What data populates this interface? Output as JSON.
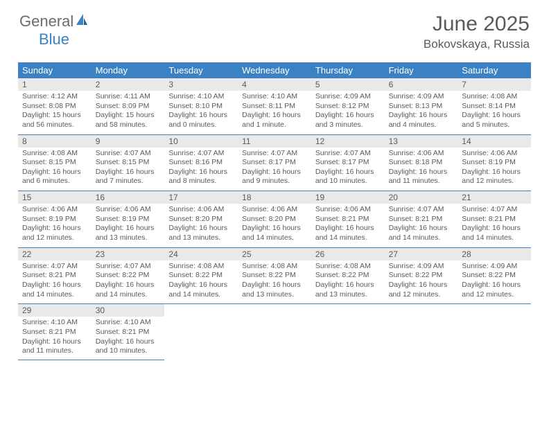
{
  "logo": {
    "text1": "General",
    "text2": "Blue"
  },
  "title": "June 2025",
  "location": "Bokovskaya, Russia",
  "colors": {
    "header_bg": "#3b82c4",
    "header_text": "#ffffff",
    "daynum_bg": "#e9e9e9",
    "text": "#5a5a5a",
    "rule": "#3b82c4",
    "page_bg": "#ffffff"
  },
  "typography": {
    "title_fontsize": 30,
    "location_fontsize": 17,
    "dayhead_fontsize": 13,
    "daynum_fontsize": 12,
    "body_fontsize": 10.5
  },
  "day_names": [
    "Sunday",
    "Monday",
    "Tuesday",
    "Wednesday",
    "Thursday",
    "Friday",
    "Saturday"
  ],
  "weeks": [
    [
      {
        "n": "1",
        "sunrise": "4:12 AM",
        "sunset": "8:08 PM",
        "daylight": "15 hours and 56 minutes."
      },
      {
        "n": "2",
        "sunrise": "4:11 AM",
        "sunset": "8:09 PM",
        "daylight": "15 hours and 58 minutes."
      },
      {
        "n": "3",
        "sunrise": "4:10 AM",
        "sunset": "8:10 PM",
        "daylight": "16 hours and 0 minutes."
      },
      {
        "n": "4",
        "sunrise": "4:10 AM",
        "sunset": "8:11 PM",
        "daylight": "16 hours and 1 minute."
      },
      {
        "n": "5",
        "sunrise": "4:09 AM",
        "sunset": "8:12 PM",
        "daylight": "16 hours and 3 minutes."
      },
      {
        "n": "6",
        "sunrise": "4:09 AM",
        "sunset": "8:13 PM",
        "daylight": "16 hours and 4 minutes."
      },
      {
        "n": "7",
        "sunrise": "4:08 AM",
        "sunset": "8:14 PM",
        "daylight": "16 hours and 5 minutes."
      }
    ],
    [
      {
        "n": "8",
        "sunrise": "4:08 AM",
        "sunset": "8:15 PM",
        "daylight": "16 hours and 6 minutes."
      },
      {
        "n": "9",
        "sunrise": "4:07 AM",
        "sunset": "8:15 PM",
        "daylight": "16 hours and 7 minutes."
      },
      {
        "n": "10",
        "sunrise": "4:07 AM",
        "sunset": "8:16 PM",
        "daylight": "16 hours and 8 minutes."
      },
      {
        "n": "11",
        "sunrise": "4:07 AM",
        "sunset": "8:17 PM",
        "daylight": "16 hours and 9 minutes."
      },
      {
        "n": "12",
        "sunrise": "4:07 AM",
        "sunset": "8:17 PM",
        "daylight": "16 hours and 10 minutes."
      },
      {
        "n": "13",
        "sunrise": "4:06 AM",
        "sunset": "8:18 PM",
        "daylight": "16 hours and 11 minutes."
      },
      {
        "n": "14",
        "sunrise": "4:06 AM",
        "sunset": "8:19 PM",
        "daylight": "16 hours and 12 minutes."
      }
    ],
    [
      {
        "n": "15",
        "sunrise": "4:06 AM",
        "sunset": "8:19 PM",
        "daylight": "16 hours and 12 minutes."
      },
      {
        "n": "16",
        "sunrise": "4:06 AM",
        "sunset": "8:19 PM",
        "daylight": "16 hours and 13 minutes."
      },
      {
        "n": "17",
        "sunrise": "4:06 AM",
        "sunset": "8:20 PM",
        "daylight": "16 hours and 13 minutes."
      },
      {
        "n": "18",
        "sunrise": "4:06 AM",
        "sunset": "8:20 PM",
        "daylight": "16 hours and 14 minutes."
      },
      {
        "n": "19",
        "sunrise": "4:06 AM",
        "sunset": "8:21 PM",
        "daylight": "16 hours and 14 minutes."
      },
      {
        "n": "20",
        "sunrise": "4:07 AM",
        "sunset": "8:21 PM",
        "daylight": "16 hours and 14 minutes."
      },
      {
        "n": "21",
        "sunrise": "4:07 AM",
        "sunset": "8:21 PM",
        "daylight": "16 hours and 14 minutes."
      }
    ],
    [
      {
        "n": "22",
        "sunrise": "4:07 AM",
        "sunset": "8:21 PM",
        "daylight": "16 hours and 14 minutes."
      },
      {
        "n": "23",
        "sunrise": "4:07 AM",
        "sunset": "8:22 PM",
        "daylight": "16 hours and 14 minutes."
      },
      {
        "n": "24",
        "sunrise": "4:08 AM",
        "sunset": "8:22 PM",
        "daylight": "16 hours and 14 minutes."
      },
      {
        "n": "25",
        "sunrise": "4:08 AM",
        "sunset": "8:22 PM",
        "daylight": "16 hours and 13 minutes."
      },
      {
        "n": "26",
        "sunrise": "4:08 AM",
        "sunset": "8:22 PM",
        "daylight": "16 hours and 13 minutes."
      },
      {
        "n": "27",
        "sunrise": "4:09 AM",
        "sunset": "8:22 PM",
        "daylight": "16 hours and 12 minutes."
      },
      {
        "n": "28",
        "sunrise": "4:09 AM",
        "sunset": "8:22 PM",
        "daylight": "16 hours and 12 minutes."
      }
    ],
    [
      {
        "n": "29",
        "sunrise": "4:10 AM",
        "sunset": "8:21 PM",
        "daylight": "16 hours and 11 minutes."
      },
      {
        "n": "30",
        "sunrise": "4:10 AM",
        "sunset": "8:21 PM",
        "daylight": "16 hours and 10 minutes."
      },
      null,
      null,
      null,
      null,
      null
    ]
  ],
  "labels": {
    "sunrise": "Sunrise:",
    "sunset": "Sunset:",
    "daylight": "Daylight:"
  }
}
